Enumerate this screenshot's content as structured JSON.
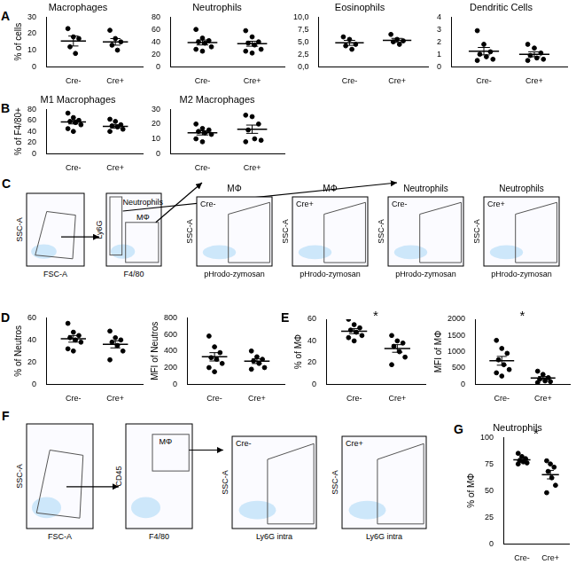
{
  "chart_data": [
    {
      "type": "scatter",
      "panel": "A",
      "title": "Macrophages",
      "y_label": "% of cells",
      "categories": [
        "Cre-",
        "Cre+"
      ],
      "points": [
        [
          23,
          18,
          17,
          12,
          8
        ],
        [
          22,
          17,
          15,
          13,
          10
        ]
      ],
      "means": [
        15.5,
        15
      ],
      "sems": [
        3,
        2
      ],
      "ylim": [
        0,
        30
      ],
      "yticks": [
        0,
        10,
        20,
        30
      ],
      "grid": false
    },
    {
      "type": "scatter",
      "title": "Neutrophils",
      "categories": [
        "Cre-",
        "Cre+"
      ],
      "points": [
        [
          60,
          46,
          42,
          40,
          38,
          32,
          28,
          25
        ],
        [
          58,
          48,
          40,
          38,
          35,
          28,
          25,
          22
        ]
      ],
      "means": [
        39,
        37
      ],
      "sems": [
        4,
        4
      ],
      "ylim": [
        0,
        80
      ],
      "yticks": [
        0,
        20,
        40,
        60,
        80
      ],
      "grid": false
    },
    {
      "type": "scatter",
      "title": "Eosinophils",
      "categories": [
        "Cre-",
        "Cre+"
      ],
      "points": [
        [
          6.0,
          5.5,
          4.5,
          4.2,
          3.5
        ],
        [
          6.5,
          5.5,
          5.2,
          5.0,
          4.5
        ]
      ],
      "means": [
        4.8,
        5.3
      ],
      "sems": [
        0.5,
        0.4
      ],
      "ylim": [
        0,
        10
      ],
      "yticks": [
        {
          "value": 0,
          "label": "0,0"
        },
        {
          "value": 2.5,
          "label": "2,5"
        },
        {
          "value": 5,
          "label": "5,0"
        },
        {
          "value": 7.5,
          "label": "7,5"
        },
        {
          "value": 10,
          "label": "10,0"
        }
      ],
      "grid": false
    },
    {
      "type": "scatter",
      "title": "Dendritic Cells",
      "categories": [
        "Cre-",
        "Cre+"
      ],
      "points": [
        [
          2.9,
          1.8,
          1.2,
          1.0,
          0.8,
          0.6,
          0.5
        ],
        [
          1.8,
          1.5,
          1.1,
          0.9,
          0.7,
          0.6,
          0.5
        ]
      ],
      "means": [
        1.25,
        1.0
      ],
      "sems": [
        0.3,
        0.2
      ],
      "ylim": [
        0,
        4
      ],
      "yticks": [
        0,
        1,
        2,
        3,
        4
      ],
      "grid": false
    },
    {
      "type": "scatter",
      "panel": "B",
      "title": "M1 Macrophages",
      "y_label": "% of F4/80+",
      "categories": [
        "Cre-",
        "Cre+"
      ],
      "points": [
        [
          73,
          65,
          60,
          58,
          56,
          52,
          45,
          40
        ],
        [
          62,
          58,
          52,
          50,
          48,
          44,
          40
        ]
      ],
      "means": [
        57,
        49
      ],
      "sems": [
        3.5,
        3
      ],
      "ylim": [
        0,
        80
      ],
      "yticks": [
        0,
        20,
        40,
        60,
        80
      ],
      "grid": false
    },
    {
      "type": "scatter",
      "title": "M2 Macrophages",
      "categories": [
        "Cre-",
        "Cre+"
      ],
      "points": [
        [
          20,
          17,
          16,
          15,
          14,
          13,
          10,
          8
        ],
        [
          26,
          25,
          20,
          16,
          10,
          9,
          8
        ]
      ],
      "means": [
        14,
        16.5
      ],
      "sems": [
        1.4,
        2.8
      ],
      "ylim": [
        0,
        30
      ],
      "yticks": [
        0,
        10,
        20,
        30
      ],
      "grid": false
    },
    {
      "type": "scatter",
      "panel": "D",
      "y_label": "% of Neutros",
      "categories": [
        "Cre-",
        "Cre+"
      ],
      "points": [
        [
          55,
          47,
          44,
          42,
          40,
          38,
          32,
          30
        ],
        [
          48,
          42,
          40,
          38,
          35,
          30,
          22
        ]
      ],
      "means": [
        41,
        36
      ],
      "sems": [
        3,
        3.2
      ],
      "ylim": [
        0,
        60
      ],
      "yticks": [
        0,
        20,
        40,
        60
      ],
      "grid": false
    },
    {
      "type": "scatter",
      "y_label": "MFI of Neutros",
      "categories": [
        "Cre-",
        "Cre+"
      ],
      "points": [
        [
          580,
          450,
          380,
          320,
          300,
          250,
          200,
          150
        ],
        [
          400,
          330,
          300,
          280,
          250,
          200,
          180
        ]
      ],
      "means": [
        330,
        277
      ],
      "sems": [
        50,
        28
      ],
      "ylim": [
        0,
        800
      ],
      "yticks": [
        0,
        200,
        400,
        600,
        800
      ],
      "grid": false
    },
    {
      "type": "scatter",
      "panel": "E",
      "y_label": "% of MΦ",
      "categories": [
        "Cre-",
        "Cre+"
      ],
      "significance": "*",
      "points": [
        [
          60,
          55,
          52,
          50,
          48,
          45,
          43,
          40
        ],
        [
          45,
          40,
          38,
          35,
          30,
          25,
          18
        ]
      ],
      "means": [
        49,
        33
      ],
      "sems": [
        2.3,
        3.5
      ],
      "ylim": [
        0,
        60
      ],
      "yticks": [
        0,
        20,
        40,
        60
      ],
      "grid": false
    },
    {
      "type": "scatter",
      "y_label": "MFI of MΦ",
      "categories": [
        "Cre-",
        "Cre+"
      ],
      "significance": "*",
      "points": [
        [
          1350,
          1100,
          950,
          750,
          600,
          450,
          350,
          250
        ],
        [
          400,
          300,
          200,
          150,
          100,
          80,
          50
        ]
      ],
      "means": [
        720,
        190
      ],
      "sems": [
        135,
        45
      ],
      "ylim": [
        0,
        2000
      ],
      "yticks": [
        0,
        500,
        1000,
        1500,
        2000
      ],
      "grid": false
    },
    {
      "type": "scatter",
      "panel": "G",
      "title": "Neutrophils",
      "y_label": "% of MΦ",
      "categories": [
        "Cre-",
        "Cre+"
      ],
      "significance": "*",
      "points": [
        [
          85,
          82,
          80,
          78,
          77,
          76,
          75
        ],
        [
          78,
          75,
          72,
          68,
          62,
          55,
          48
        ]
      ],
      "means": [
        79,
        65
      ],
      "sems": [
        1.3,
        4
      ],
      "ylim": [
        0,
        100
      ],
      "yticks": [
        0,
        25,
        50,
        75,
        100
      ],
      "grid": false
    }
  ],
  "flow_panels": [
    {
      "panel": "C",
      "plots": [
        {
          "x_label": "FSC-A",
          "y_label": "SSC-A"
        },
        {
          "x_label": "F4/80",
          "y_label": "Ly6G",
          "gates": [
            "Neutrophils",
            "MΦ"
          ]
        },
        {
          "title": "MΦ",
          "tag": "Cre-",
          "x_label": "pHrodo-zymosan",
          "y_label": "SSC-A"
        },
        {
          "title": "MΦ",
          "tag": "Cre+",
          "x_label": "pHrodo-zymosan",
          "y_label": "SSC-A"
        },
        {
          "title": "Neutrophils",
          "tag": "Cre-",
          "x_label": "pHrodo-zymosan",
          "y_label": "SSC-A"
        },
        {
          "title": "Neutrophils",
          "tag": "Cre+",
          "x_label": "pHrodo-zymosan",
          "y_label": "SSC-A"
        }
      ]
    },
    {
      "panel": "F",
      "plots": [
        {
          "x_label": "FSC-A",
          "y_label": "SSC-A"
        },
        {
          "x_label": "F4/80",
          "y_label": "CD45",
          "gates": [
            "MΦ"
          ]
        },
        {
          "tag": "Cre-",
          "x_label": "Ly6G intra",
          "y_label": "SSC-A"
        },
        {
          "tag": "Cre+",
          "x_label": "Ly6G intra",
          "y_label": "SSC-A"
        }
      ]
    }
  ]
}
